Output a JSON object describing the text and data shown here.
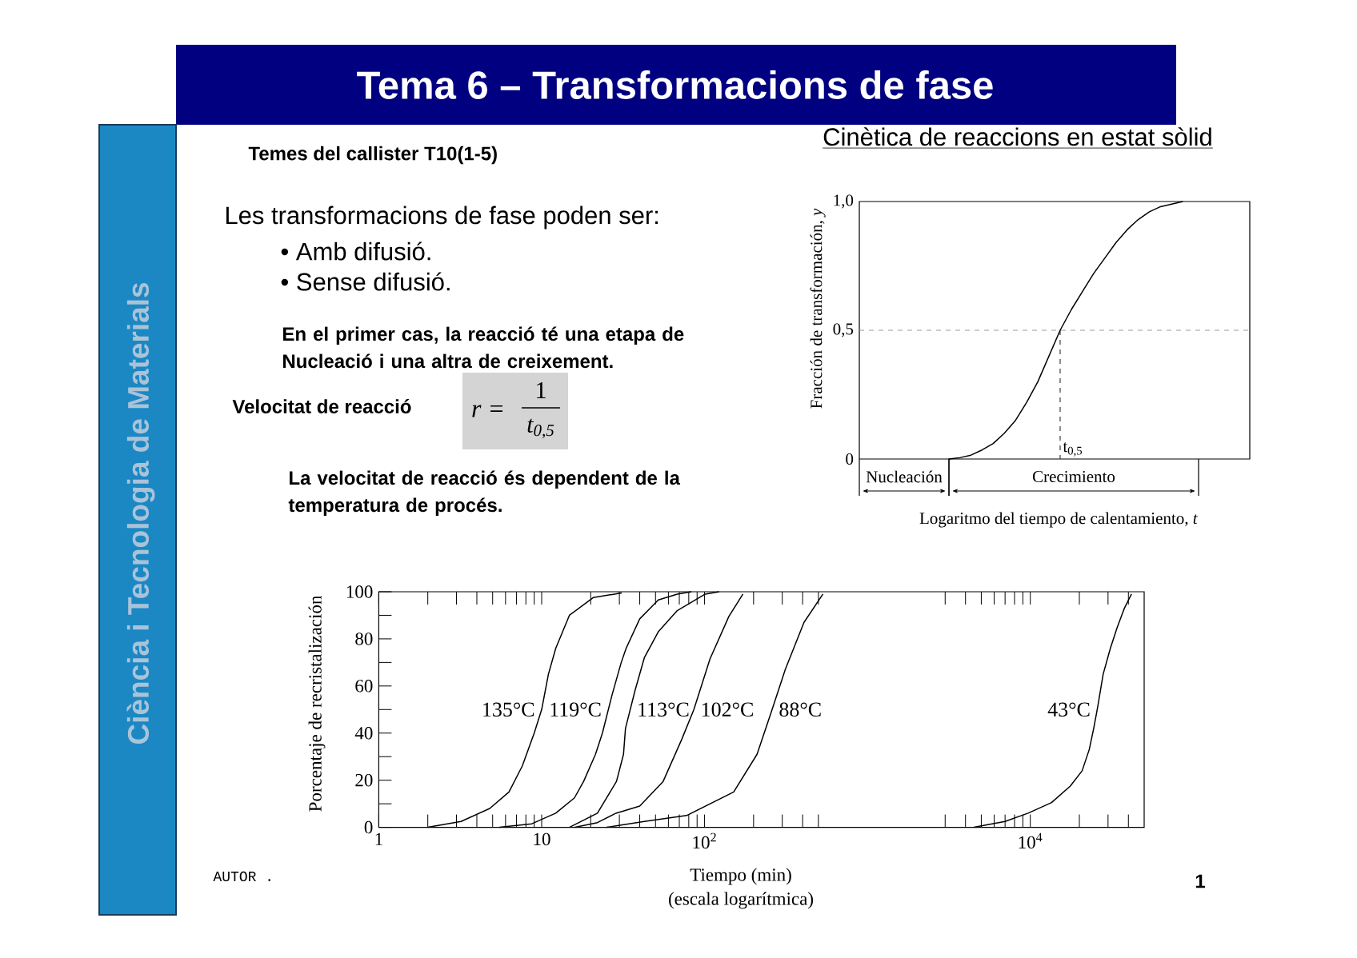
{
  "chart_data": [
    {
      "type": "other",
      "title": "Tema 6 – Transformacions de fase",
      "subtitle": "Ciència i Tecnologia de Materials",
      "annotations": [
        "Temes del callister T10(1-5)",
        "Les transformacions de fase poden ser:",
        "• Amb difusió.",
        "• Sense difusió.",
        "En el primer cas, la reacció té una etapa de Nucleació i una altra de creixement.",
        "Velocitat de reacció",
        "r =",
        "1",
        "t$_{0,5}$",
        "La velocitat de reacció és dependent de la temperatura de procés.",
        "AUTOR .",
        "1"
      ]
    },
    {
      "type": "line",
      "title": "Cinètica de reaccions en estat sòlid",
      "xlabel": "Logaritmo del tiempo de calentamiento, *t*",
      "ylabel": "Fracción de transformación, *y*",
      "annotations": [
        "t$_{0,5}$",
        "Nucleación",
        "Crecimiento"
      ],
      "categories": [
        null,
        null,
        null,
        null,
        null,
        null,
        null,
        null,
        null,
        null,
        null,
        null,
        null,
        null,
        null,
        null,
        null,
        null,
        null,
        null,
        null,
        null,
        null,
        null,
        null,
        null,
        null,
        null,
        null,
        null,
        null,
        null,
        null,
        null,
        null,
        null
      ],
      "series": [
        {
          "color": "#000000",
          "values": [
            null,
            null,
            null,
            null,
            null,
            null,
            null,
            null,
            0,
            0.005,
            0.015,
            0.035,
            0.06,
            0.1,
            0.15,
            0.22,
            0.3,
            0.4,
            0.5,
            0.58,
            0.65,
            0.72,
            0.78,
            0.84,
            0.89,
            0.93,
            0.96,
            0.98,
            0.99,
            1,
            null,
            null,
            null,
            null,
            null,
            null
          ]
        }
      ],
      "ylim": [
        0,
        1
      ],
      "yticks": [
        0,
        {
          "value": 0.5,
          "label": "0,5"
        },
        {
          "value": 1,
          "label": "1,0"
        }
      ],
      "ref_lines": [
        {
          "axis": "y",
          "value": 0.5,
          "line_style": "dashed"
        }
      ]
    },
    {
      "type": "line",
      "xlabel": "Tiempo (min)",
      "ylabel": "Porcentaje de recristalización",
      "annotations": [
        "(escala logarítmica)"
      ],
      "log": "x",
      "xlim": [
        1,
        50000
      ],
      "xticks": [
        1,
        {
          "value": 2,
          "label": null
        },
        {
          "value": 3,
          "label": null
        },
        {
          "value": 4,
          "label": null
        },
        {
          "value": 5,
          "label": null
        },
        {
          "value": 6,
          "label": null
        },
        {
          "value": 7,
          "label": null
        },
        {
          "value": 8,
          "label": null
        },
        {
          "value": 9,
          "label": null
        },
        10,
        {
          "value": 20,
          "label": null
        },
        {
          "value": 30,
          "label": null
        },
        {
          "value": 40,
          "label": null
        },
        {
          "value": 50,
          "label": null
        },
        {
          "value": 60,
          "label": null
        },
        {
          "value": 70,
          "label": null
        },
        {
          "value": 80,
          "label": null
        },
        {
          "value": 90,
          "label": null
        },
        {
          "value": 100,
          "label": "10$^{2}$"
        },
        {
          "value": 200,
          "label": null
        },
        {
          "value": 300,
          "label": null
        },
        {
          "value": 400,
          "label": null
        },
        {
          "value": 500,
          "label": null
        },
        {
          "value": 3000,
          "label": null
        },
        {
          "value": 4000,
          "label": null
        },
        {
          "value": 5000,
          "label": null
        },
        {
          "value": 6000,
          "label": null
        },
        {
          "value": 7000,
          "label": null
        },
        {
          "value": 8000,
          "label": null
        },
        {
          "value": 9000,
          "label": null
        },
        {
          "value": 10000,
          "label": "10$^{4}$"
        },
        {
          "value": 20000,
          "label": null
        },
        {
          "value": 30000,
          "label": null
        },
        {
          "value": 40000,
          "label": null
        }
      ],
      "ylim": [
        0,
        100
      ],
      "yticks": [
        0,
        {
          "value": 10,
          "label": null
        },
        20,
        {
          "value": 30,
          "label": null
        },
        40,
        {
          "value": 50,
          "label": null
        },
        60,
        {
          "value": 70,
          "label": null
        },
        80,
        {
          "value": 90,
          "label": null
        },
        100
      ],
      "series": [
        {
          "name": "135°C",
          "color": "#000000",
          "x": [
            2,
            3.2,
            4.8,
            6.3,
            7.6,
            9,
            10,
            11,
            12.2,
            14.8,
            20.7,
            31
          ],
          "values": [
            0,
            2.5,
            8,
            15,
            26,
            40,
            50,
            65,
            76,
            90,
            97.5,
            99.5
          ]
        },
        {
          "name": "119°C",
          "color": "#000000",
          "x": [
            5.5,
            8.7,
            12.2,
            15.9,
            18.1,
            21.4,
            23.6,
            27,
            30.8,
            33,
            40,
            52,
            68,
            83
          ],
          "values": [
            0,
            1.5,
            6,
            12.5,
            19.5,
            31,
            40,
            56,
            70,
            76,
            88.5,
            96.5,
            99,
            100
          ]
        },
        {
          "name": "113°C",
          "color": "#000000",
          "x": [
            14.8,
            22,
            28.8,
            31.8,
            32.7,
            37.4,
            42.7,
            52,
            68,
            101,
            123
          ],
          "values": [
            0,
            6,
            19.5,
            31,
            42,
            58,
            72,
            83,
            92,
            99,
            100
          ]
        },
        {
          "name": "102°C",
          "color": "#000000",
          "x": [
            16,
            22,
            28.6,
            40,
            55.7,
            72.6,
            86,
            108,
            141,
            172
          ],
          "values": [
            0,
            2,
            6,
            9,
            19.5,
            37.5,
            50,
            71.5,
            89.5,
            99
          ]
        },
        {
          "name": "88°C",
          "color": "#000000",
          "x": [
            25,
            42.7,
            77.6,
            151,
            210,
            257,
            313,
            408,
            533
          ],
          "values": [
            0,
            2.5,
            5,
            15,
            31,
            49,
            67,
            87,
            99
          ]
        },
        {
          "name": "43°C",
          "color": "#000000",
          "x": [
            4500,
            7000,
            9700,
            13500,
            17600,
            20800,
            23000,
            24500,
            25900,
            28000,
            31000,
            34200,
            37800,
            41800
          ],
          "values": [
            0,
            2.5,
            6,
            10.5,
            17.5,
            24,
            33,
            42,
            51,
            65,
            76,
            85,
            93,
            99
          ]
        }
      ]
    }
  ]
}
